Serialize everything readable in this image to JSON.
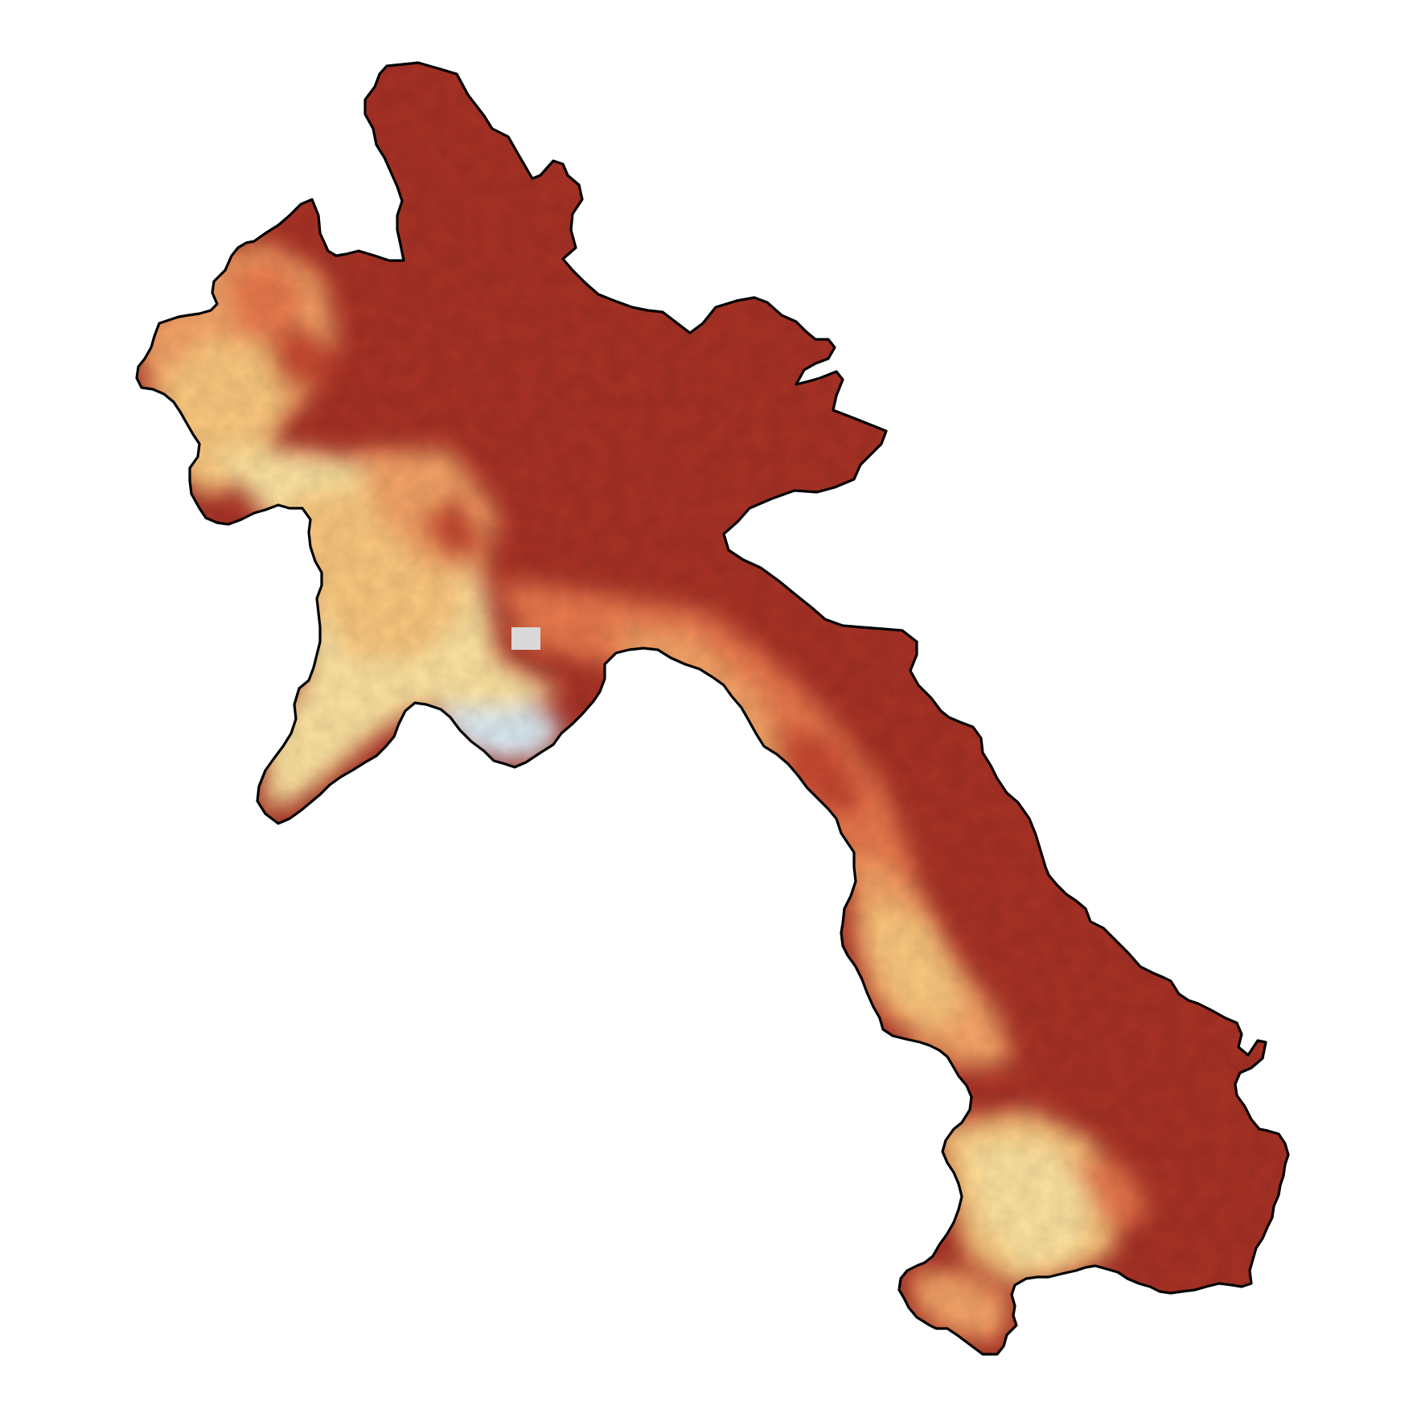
{
  "map": {
    "region": "Laos",
    "style": "choropleth raster with black country boundary",
    "background_color": "#ffffff",
    "boundary_color": "#000000",
    "palette": {
      "highest": "#a93226",
      "high": "#c84a32",
      "medium_high": "#e9794e",
      "medium": "#f5a467",
      "medium_low": "#fbc87e",
      "low": "#fde3a0",
      "lowest": "#dcebf3",
      "no_data": "#d9d9d9",
      "water": "#6e9ac8"
    },
    "labels_visible": false
  }
}
